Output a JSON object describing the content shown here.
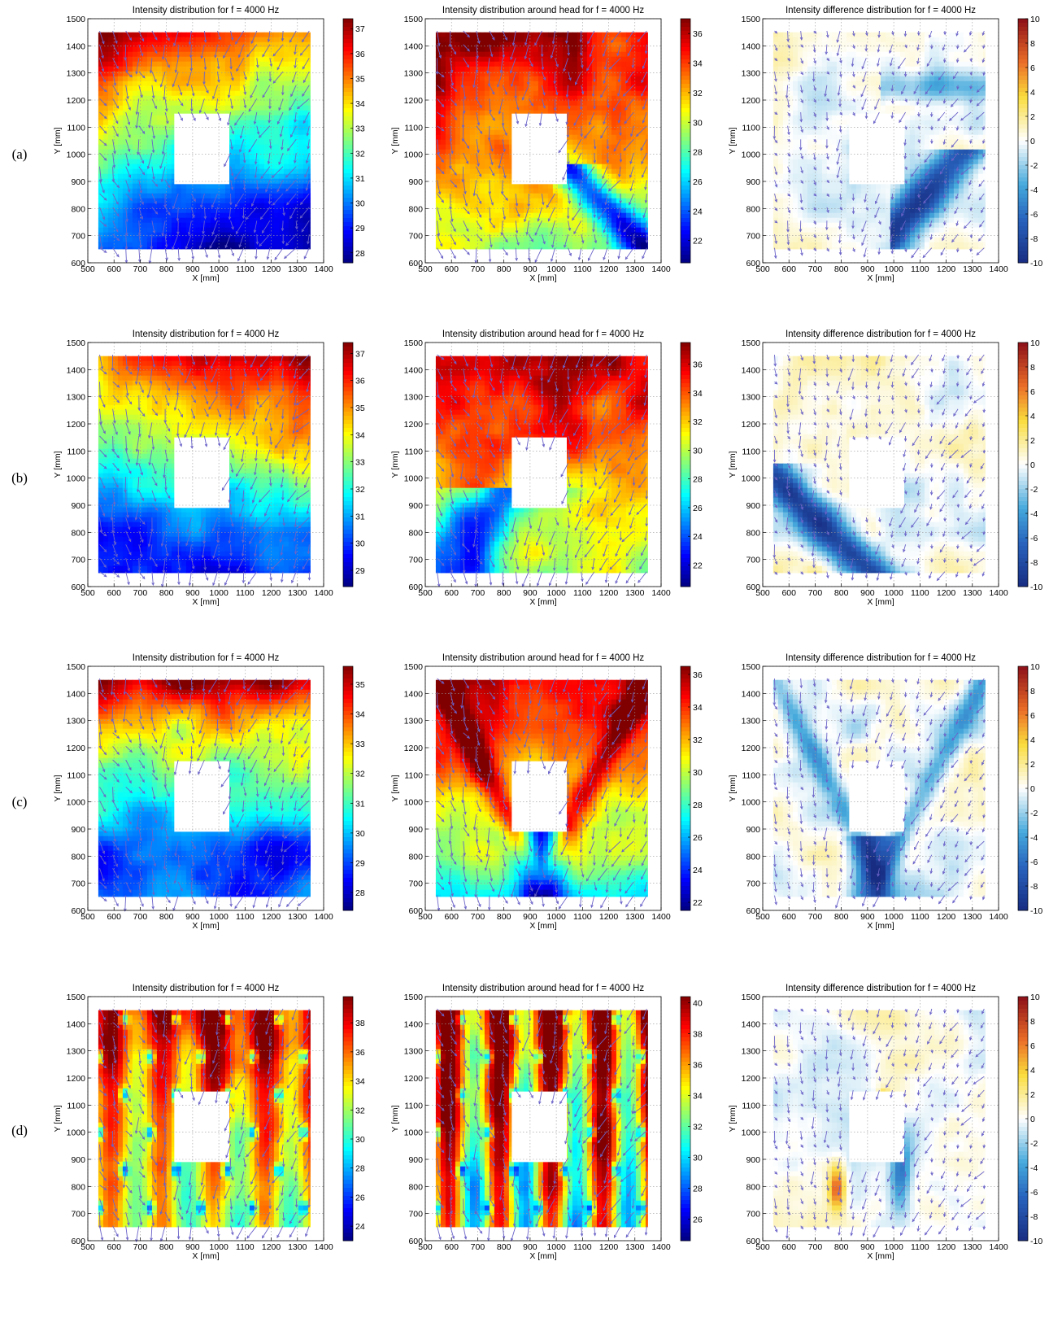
{
  "chart_data": [
    {
      "id": "a1",
      "type": "heatmap",
      "row": "(a)",
      "title": "Intensity distribution for f = 4000 Hz",
      "xlabel": "X [mm]",
      "ylabel": "Y [mm]",
      "xlim": [
        500,
        1400
      ],
      "ylim": [
        600,
        1500
      ],
      "xticks": [
        500,
        600,
        700,
        800,
        900,
        1000,
        1100,
        1200,
        1300,
        1400
      ],
      "yticks": [
        600,
        700,
        800,
        900,
        1000,
        1100,
        1200,
        1300,
        1400,
        1500
      ],
      "data_extent": {
        "x": [
          540,
          1350
        ],
        "y": [
          650,
          1450
        ]
      },
      "mask_rect": {
        "x": [
          830,
          1040
        ],
        "y": [
          890,
          1150
        ]
      },
      "colorbar": {
        "range": [
          27.6,
          37.4
        ],
        "ticks": [
          28,
          29,
          30,
          31,
          32,
          33,
          34,
          35,
          36,
          37
        ]
      },
      "grid": true,
      "vectors": true,
      "pattern": "a_left"
    },
    {
      "id": "a2",
      "type": "heatmap",
      "row": "(a)",
      "title": "Intensity distribution around head  for f = 4000 Hz",
      "xlabel": "X [mm]",
      "ylabel": "Y [mm]",
      "xlim": [
        500,
        1400
      ],
      "ylim": [
        600,
        1500
      ],
      "xticks": [
        500,
        600,
        700,
        800,
        900,
        1000,
        1100,
        1200,
        1300,
        1400
      ],
      "yticks": [
        600,
        700,
        800,
        900,
        1000,
        1100,
        1200,
        1300,
        1400,
        1500
      ],
      "data_extent": {
        "x": [
          540,
          1350
        ],
        "y": [
          650,
          1450
        ]
      },
      "mask_rect": {
        "x": [
          830,
          1040
        ],
        "y": [
          890,
          1150
        ]
      },
      "colorbar": {
        "range": [
          20.5,
          37
        ],
        "ticks": [
          22,
          24,
          26,
          28,
          30,
          32,
          34,
          36
        ]
      },
      "grid": true,
      "vectors": true,
      "pattern": "a_mid"
    },
    {
      "id": "a3",
      "type": "heatmap",
      "row": "(a)",
      "title": "Intensity difference distribution for f = 4000 Hz",
      "xlabel": "X [mm]",
      "ylabel": "Y [mm]",
      "xlim": [
        500,
        1400
      ],
      "ylim": [
        600,
        1500
      ],
      "xticks": [
        500,
        600,
        700,
        800,
        900,
        1000,
        1100,
        1200,
        1300,
        1400
      ],
      "yticks": [
        600,
        700,
        800,
        900,
        1000,
        1100,
        1200,
        1300,
        1400,
        1500
      ],
      "data_extent": {
        "x": [
          540,
          1350
        ],
        "y": [
          650,
          1450
        ]
      },
      "mask_rect": {
        "x": [
          830,
          1040
        ],
        "y": [
          890,
          1150
        ]
      },
      "colorbar": {
        "range": [
          -10,
          10
        ],
        "ticks": [
          -10,
          -8,
          -6,
          -4,
          -2,
          0,
          2,
          4,
          6,
          8,
          10
        ]
      },
      "grid": true,
      "vectors": true,
      "pattern": "a_diff"
    },
    {
      "id": "b1",
      "type": "heatmap",
      "row": "(b)",
      "title": "Intensity distribution for f = 4000 Hz",
      "xlabel": "X [mm]",
      "ylabel": "Y [mm]",
      "xlim": [
        500,
        1400
      ],
      "ylim": [
        600,
        1500
      ],
      "xticks": [
        500,
        600,
        700,
        800,
        900,
        1000,
        1100,
        1200,
        1300,
        1400
      ],
      "yticks": [
        600,
        700,
        800,
        900,
        1000,
        1100,
        1200,
        1300,
        1400,
        1500
      ],
      "data_extent": {
        "x": [
          540,
          1350
        ],
        "y": [
          650,
          1450
        ]
      },
      "mask_rect": {
        "x": [
          830,
          1040
        ],
        "y": [
          890,
          1150
        ]
      },
      "colorbar": {
        "range": [
          28.4,
          37.4
        ],
        "ticks": [
          29,
          30,
          31,
          32,
          33,
          34,
          35,
          36,
          37
        ]
      },
      "grid": true,
      "vectors": true,
      "pattern": "b_left"
    },
    {
      "id": "b2",
      "type": "heatmap",
      "row": "(b)",
      "title": "Intensity distribution around head  for f = 4000 Hz",
      "xlabel": "X [mm]",
      "ylabel": "Y [mm]",
      "xlim": [
        500,
        1400
      ],
      "ylim": [
        600,
        1500
      ],
      "xticks": [
        500,
        600,
        700,
        800,
        900,
        1000,
        1100,
        1200,
        1300,
        1400
      ],
      "yticks": [
        600,
        700,
        800,
        900,
        1000,
        1100,
        1200,
        1300,
        1400,
        1500
      ],
      "data_extent": {
        "x": [
          540,
          1350
        ],
        "y": [
          650,
          1450
        ]
      },
      "mask_rect": {
        "x": [
          830,
          1040
        ],
        "y": [
          890,
          1150
        ]
      },
      "colorbar": {
        "range": [
          20.5,
          37.5
        ],
        "ticks": [
          22,
          24,
          26,
          28,
          30,
          32,
          34,
          36
        ]
      },
      "grid": true,
      "vectors": true,
      "pattern": "b_mid"
    },
    {
      "id": "b3",
      "type": "heatmap",
      "row": "(b)",
      "title": "Intensity difference distribution for f = 4000 Hz",
      "xlabel": "X [mm]",
      "ylabel": "Y [mm]",
      "xlim": [
        500,
        1400
      ],
      "ylim": [
        600,
        1500
      ],
      "xticks": [
        500,
        600,
        700,
        800,
        900,
        1000,
        1100,
        1200,
        1300,
        1400
      ],
      "yticks": [
        600,
        700,
        800,
        900,
        1000,
        1100,
        1200,
        1300,
        1400,
        1500
      ],
      "data_extent": {
        "x": [
          540,
          1350
        ],
        "y": [
          650,
          1450
        ]
      },
      "mask_rect": {
        "x": [
          830,
          1040
        ],
        "y": [
          890,
          1150
        ]
      },
      "colorbar": {
        "range": [
          -10,
          10
        ],
        "ticks": [
          -10,
          -8,
          -6,
          -4,
          -2,
          0,
          2,
          4,
          6,
          8,
          10
        ]
      },
      "grid": true,
      "vectors": true,
      "pattern": "b_diff"
    },
    {
      "id": "c1",
      "type": "heatmap",
      "row": "(c)",
      "title": "Intensity distribution for f = 4000 Hz",
      "xlabel": "X [mm]",
      "ylabel": "Y [mm]",
      "xlim": [
        500,
        1400
      ],
      "ylim": [
        600,
        1500
      ],
      "xticks": [
        500,
        600,
        700,
        800,
        900,
        1000,
        1100,
        1200,
        1300,
        1400
      ],
      "yticks": [
        600,
        700,
        800,
        900,
        1000,
        1100,
        1200,
        1300,
        1400,
        1500
      ],
      "data_extent": {
        "x": [
          540,
          1350
        ],
        "y": [
          650,
          1450
        ]
      },
      "mask_rect": {
        "x": [
          830,
          1040
        ],
        "y": [
          890,
          1150
        ]
      },
      "colorbar": {
        "range": [
          27.4,
          35.6
        ],
        "ticks": [
          28,
          29,
          30,
          31,
          32,
          33,
          34,
          35
        ]
      },
      "grid": true,
      "vectors": true,
      "pattern": "c_left"
    },
    {
      "id": "c2",
      "type": "heatmap",
      "row": "(c)",
      "title": "Intensity distribution around head  for f = 4000 Hz",
      "xlabel": "X [mm]",
      "ylabel": "Y [mm]",
      "xlim": [
        500,
        1400
      ],
      "ylim": [
        600,
        1500
      ],
      "xticks": [
        500,
        600,
        700,
        800,
        900,
        1000,
        1100,
        1200,
        1300,
        1400
      ],
      "yticks": [
        600,
        700,
        800,
        900,
        1000,
        1100,
        1200,
        1300,
        1400,
        1500
      ],
      "data_extent": {
        "x": [
          540,
          1350
        ],
        "y": [
          650,
          1450
        ]
      },
      "mask_rect": {
        "x": [
          830,
          1040
        ],
        "y": [
          890,
          1150
        ]
      },
      "colorbar": {
        "range": [
          21.5,
          36.5
        ],
        "ticks": [
          22,
          24,
          26,
          28,
          30,
          32,
          34,
          36
        ]
      },
      "grid": true,
      "vectors": true,
      "pattern": "c_mid"
    },
    {
      "id": "c3",
      "type": "heatmap",
      "row": "(c)",
      "title": "Intensity difference distribution for f = 4000 Hz",
      "xlabel": "X [mm]",
      "ylabel": "Y [mm]",
      "xlim": [
        500,
        1400
      ],
      "ylim": [
        600,
        1500
      ],
      "xticks": [
        500,
        600,
        700,
        800,
        900,
        1000,
        1100,
        1200,
        1300,
        1400
      ],
      "yticks": [
        600,
        700,
        800,
        900,
        1000,
        1100,
        1200,
        1300,
        1400,
        1500
      ],
      "data_extent": {
        "x": [
          540,
          1350
        ],
        "y": [
          650,
          1450
        ]
      },
      "mask_rect": {
        "x": [
          830,
          1040
        ],
        "y": [
          890,
          1150
        ]
      },
      "colorbar": {
        "range": [
          -10,
          10
        ],
        "ticks": [
          -10,
          -8,
          -6,
          -4,
          -2,
          0,
          2,
          4,
          6,
          8,
          10
        ]
      },
      "grid": true,
      "vectors": true,
      "pattern": "c_diff"
    },
    {
      "id": "d1",
      "type": "heatmap",
      "row": "(d)",
      "title": "Intensity distribution for f = 4000 Hz",
      "xlabel": "X [mm]",
      "ylabel": "Y [mm]",
      "xlim": [
        500,
        1400
      ],
      "ylim": [
        600,
        1500
      ],
      "xticks": [
        500,
        600,
        700,
        800,
        900,
        1000,
        1100,
        1200,
        1300,
        1400
      ],
      "yticks": [
        600,
        700,
        800,
        900,
        1000,
        1100,
        1200,
        1300,
        1400,
        1500
      ],
      "data_extent": {
        "x": [
          540,
          1350
        ],
        "y": [
          650,
          1450
        ]
      },
      "mask_rect": {
        "x": [
          830,
          1040
        ],
        "y": [
          890,
          1150
        ]
      },
      "colorbar": {
        "range": [
          23,
          39.8
        ],
        "ticks": [
          24,
          26,
          28,
          30,
          32,
          34,
          36,
          38
        ]
      },
      "grid": true,
      "vectors": true,
      "pattern": "d_left"
    },
    {
      "id": "d2",
      "type": "heatmap",
      "row": "(d)",
      "title": "Intensity distribution around head  for f = 4000 Hz",
      "xlabel": "X [mm]",
      "ylabel": "Y [mm]",
      "xlim": [
        500,
        1400
      ],
      "ylim": [
        600,
        1500
      ],
      "xticks": [
        500,
        600,
        700,
        800,
        900,
        1000,
        1100,
        1200,
        1300,
        1400
      ],
      "yticks": [
        600,
        700,
        800,
        900,
        1000,
        1100,
        1200,
        1300,
        1400,
        1500
      ],
      "data_extent": {
        "x": [
          540,
          1350
        ],
        "y": [
          650,
          1450
        ]
      },
      "mask_rect": {
        "x": [
          830,
          1040
        ],
        "y": [
          890,
          1150
        ]
      },
      "colorbar": {
        "range": [
          24.6,
          40.4
        ],
        "ticks": [
          26,
          28,
          30,
          32,
          34,
          36,
          38,
          40
        ]
      },
      "grid": true,
      "vectors": true,
      "pattern": "d_mid"
    },
    {
      "id": "d3",
      "type": "heatmap",
      "row": "(d)",
      "title": "Intensity difference distribution for f = 4000 Hz",
      "xlabel": "X [mm]",
      "ylabel": "Y [mm]",
      "xlim": [
        500,
        1400
      ],
      "ylim": [
        600,
        1500
      ],
      "xticks": [
        500,
        600,
        700,
        800,
        900,
        1000,
        1100,
        1200,
        1300,
        1400
      ],
      "yticks": [
        600,
        700,
        800,
        900,
        1000,
        1100,
        1200,
        1300,
        1400,
        1500
      ],
      "data_extent": {
        "x": [
          540,
          1350
        ],
        "y": [
          650,
          1450
        ]
      },
      "mask_rect": {
        "x": [
          830,
          1040
        ],
        "y": [
          890,
          1150
        ]
      },
      "colorbar": {
        "range": [
          -10,
          10
        ],
        "ticks": [
          -10,
          -8,
          -6,
          -4,
          -2,
          0,
          2,
          4,
          6,
          8,
          10
        ]
      },
      "grid": true,
      "vectors": true,
      "pattern": "d_diff"
    }
  ],
  "rows": [
    "(a)",
    "(b)",
    "(c)",
    "(d)"
  ],
  "colors": {
    "arrow": "#6b63c8",
    "grid": "#9a9a9a",
    "axis": "#000000",
    "colormap": "jet"
  }
}
